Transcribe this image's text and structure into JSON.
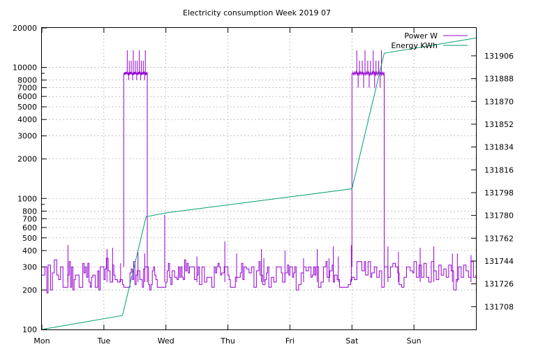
{
  "chart_data": {
    "type": "line",
    "title": "Electricity consumption Week 2019 07",
    "x_axis": {
      "categories": [
        "Mon",
        "Tue",
        "Wed",
        "Thu",
        "Fri",
        "Sat",
        "Sun"
      ],
      "unit": "days",
      "range": [
        0,
        7
      ]
    },
    "y_left": {
      "scale": "log",
      "range": [
        100,
        20000
      ],
      "ticks": [
        100,
        200,
        300,
        400,
        500,
        600,
        700,
        800,
        1000,
        2000,
        3000,
        4000,
        5000,
        6000,
        7000,
        8000,
        10000,
        20000
      ]
    },
    "y_right": {
      "scale": "linear",
      "range": [
        131690,
        131928
      ],
      "ticks": [
        131708,
        131726,
        131744,
        131762,
        131780,
        131798,
        131816,
        131834,
        131852,
        131870,
        131888,
        131906
      ]
    },
    "legend": {
      "placement": "top-right"
    },
    "grid": true,
    "series": [
      {
        "name": "Power W",
        "axis": "left",
        "color": "#9400d3",
        "step": true,
        "points": [
          [
            0.0,
            260
          ],
          [
            0.05,
            300
          ],
          [
            0.08,
            190
          ],
          [
            0.1,
            310
          ],
          [
            0.14,
            200
          ],
          [
            0.17,
            270
          ],
          [
            0.2,
            340
          ],
          [
            0.24,
            260
          ],
          [
            0.27,
            240
          ],
          [
            0.3,
            300
          ],
          [
            0.34,
            210
          ],
          [
            0.4,
            210
          ],
          [
            0.42,
            260
          ],
          [
            0.44,
            330
          ],
          [
            0.46,
            210
          ],
          [
            0.48,
            300
          ],
          [
            0.5,
            200
          ],
          [
            0.52,
            240
          ],
          [
            0.54,
            260
          ],
          [
            0.6,
            210
          ],
          [
            0.64,
            210
          ],
          [
            0.66,
            320
          ],
          [
            0.68,
            270
          ],
          [
            0.7,
            300
          ],
          [
            0.72,
            250
          ],
          [
            0.74,
            320
          ],
          [
            0.76,
            230
          ],
          [
            0.78,
            210
          ],
          [
            0.8,
            250
          ],
          [
            0.82,
            260
          ],
          [
            0.86,
            210
          ],
          [
            0.9,
            280
          ],
          [
            0.92,
            200
          ],
          [
            0.94,
            300
          ],
          [
            0.97,
            300
          ],
          [
            1.0,
            240
          ],
          [
            1.02,
            290
          ],
          [
            1.04,
            350
          ],
          [
            1.07,
            280
          ],
          [
            1.1,
            230
          ],
          [
            1.14,
            310
          ],
          [
            1.16,
            260
          ],
          [
            1.18,
            240
          ],
          [
            1.22,
            230
          ],
          [
            1.26,
            240
          ],
          [
            1.3,
            220
          ],
          [
            1.32,
            210
          ],
          [
            1.36,
            210
          ],
          [
            1.4,
            210
          ],
          [
            1.42,
            270
          ],
          [
            1.44,
            290
          ],
          [
            1.46,
            240
          ],
          [
            1.48,
            330
          ],
          [
            1.5,
            220
          ],
          [
            1.52,
            260
          ],
          [
            1.54,
            280
          ],
          [
            1.58,
            240
          ],
          [
            1.6,
            240
          ],
          [
            1.62,
            210
          ],
          [
            1.64,
            290
          ],
          [
            1.66,
            300
          ],
          [
            1.7,
            300
          ],
          [
            1.72,
            220
          ],
          [
            1.74,
            200
          ],
          [
            1.76,
            220
          ],
          [
            1.78,
            280
          ],
          [
            1.8,
            300
          ],
          [
            1.82,
            260
          ],
          [
            1.84,
            240
          ],
          [
            1.86,
            210
          ],
          [
            1.9,
            210
          ],
          [
            1.94,
            210
          ],
          [
            1.98,
            210
          ],
          [
            2.0,
            230
          ],
          [
            2.02,
            280
          ],
          [
            2.04,
            320
          ],
          [
            2.06,
            250
          ],
          [
            2.08,
            220
          ],
          [
            2.1,
            280
          ],
          [
            2.14,
            250
          ],
          [
            2.18,
            240
          ],
          [
            2.2,
            300
          ],
          [
            2.22,
            250
          ],
          [
            2.24,
            300
          ],
          [
            2.26,
            250
          ],
          [
            2.28,
            240
          ],
          [
            2.3,
            340
          ],
          [
            2.32,
            280
          ],
          [
            2.34,
            320
          ],
          [
            2.36,
            270
          ],
          [
            2.38,
            300
          ],
          [
            2.42,
            300
          ],
          [
            2.46,
            240
          ],
          [
            2.5,
            260
          ],
          [
            2.52,
            300
          ],
          [
            2.54,
            220
          ],
          [
            2.58,
            300
          ],
          [
            2.6,
            300
          ],
          [
            2.62,
            230
          ],
          [
            2.66,
            250
          ],
          [
            2.7,
            250
          ],
          [
            2.74,
            210
          ],
          [
            2.78,
            300
          ],
          [
            2.8,
            270
          ],
          [
            2.82,
            300
          ],
          [
            2.84,
            320
          ],
          [
            2.86,
            300
          ],
          [
            2.88,
            260
          ],
          [
            2.9,
            270
          ],
          [
            2.94,
            300
          ],
          [
            2.98,
            300
          ],
          [
            3.0,
            260
          ],
          [
            3.02,
            240
          ],
          [
            3.04,
            210
          ],
          [
            3.08,
            210
          ],
          [
            3.12,
            250
          ],
          [
            3.16,
            250
          ],
          [
            3.2,
            270
          ],
          [
            3.22,
            320
          ],
          [
            3.24,
            240
          ],
          [
            3.26,
            300
          ],
          [
            3.3,
            290
          ],
          [
            3.34,
            270
          ],
          [
            3.38,
            300
          ],
          [
            3.4,
            300
          ],
          [
            3.42,
            210
          ],
          [
            3.46,
            280
          ],
          [
            3.5,
            330
          ],
          [
            3.52,
            260
          ],
          [
            3.56,
            220
          ],
          [
            3.6,
            240
          ],
          [
            3.62,
            270
          ],
          [
            3.64,
            300
          ],
          [
            3.66,
            210
          ],
          [
            3.7,
            250
          ],
          [
            3.74,
            230
          ],
          [
            3.78,
            300
          ],
          [
            3.82,
            300
          ],
          [
            3.86,
            270
          ],
          [
            3.88,
            230
          ],
          [
            3.92,
            270
          ],
          [
            3.96,
            310
          ],
          [
            3.98,
            260
          ],
          [
            4.0,
            300
          ],
          [
            4.04,
            250
          ],
          [
            4.06,
            270
          ],
          [
            4.08,
            300
          ],
          [
            4.1,
            200
          ],
          [
            4.14,
            220
          ],
          [
            4.18,
            270
          ],
          [
            4.22,
            300
          ],
          [
            4.26,
            280
          ],
          [
            4.3,
            300
          ],
          [
            4.34,
            250
          ],
          [
            4.36,
            260
          ],
          [
            4.38,
            300
          ],
          [
            4.4,
            260
          ],
          [
            4.42,
            300
          ],
          [
            4.46,
            210
          ],
          [
            4.5,
            230
          ],
          [
            4.54,
            300
          ],
          [
            4.58,
            330
          ],
          [
            4.6,
            250
          ],
          [
            4.64,
            280
          ],
          [
            4.68,
            310
          ],
          [
            4.7,
            230
          ],
          [
            4.72,
            260
          ],
          [
            4.76,
            240
          ],
          [
            4.8,
            210
          ],
          [
            4.84,
            210
          ],
          [
            4.88,
            210
          ],
          [
            4.9,
            210
          ],
          [
            4.94,
            220
          ],
          [
            4.98,
            240
          ],
          [
            5.0,
            250
          ],
          [
            5.04,
            240
          ],
          [
            5.08,
            330
          ],
          [
            5.12,
            330
          ],
          [
            5.16,
            280
          ],
          [
            5.2,
            330
          ],
          [
            5.22,
            260
          ],
          [
            5.26,
            330
          ],
          [
            5.3,
            250
          ],
          [
            5.32,
            270
          ],
          [
            5.36,
            300
          ],
          [
            5.4,
            250
          ],
          [
            5.44,
            280
          ],
          [
            5.48,
            210
          ],
          [
            5.52,
            300
          ],
          [
            5.56,
            300
          ],
          [
            5.58,
            250
          ],
          [
            5.62,
            300
          ],
          [
            5.66,
            320
          ],
          [
            5.7,
            300
          ],
          [
            5.74,
            270
          ],
          [
            5.76,
            220
          ],
          [
            5.8,
            210
          ],
          [
            5.84,
            250
          ],
          [
            5.88,
            300
          ],
          [
            5.9,
            300
          ],
          [
            5.94,
            280
          ],
          [
            5.98,
            270
          ],
          [
            6.0,
            330
          ],
          [
            6.04,
            250
          ],
          [
            6.08,
            310
          ],
          [
            6.12,
            250
          ],
          [
            6.16,
            320
          ],
          [
            6.2,
            250
          ],
          [
            6.24,
            230
          ],
          [
            6.28,
            330
          ],
          [
            6.32,
            280
          ],
          [
            6.36,
            240
          ],
          [
            6.4,
            310
          ],
          [
            6.44,
            260
          ],
          [
            6.48,
            290
          ],
          [
            6.52,
            250
          ],
          [
            6.56,
            310
          ],
          [
            6.6,
            280
          ],
          [
            6.64,
            200
          ],
          [
            6.68,
            240
          ],
          [
            6.72,
            300
          ],
          [
            6.76,
            250
          ],
          [
            6.8,
            310
          ],
          [
            6.84,
            280
          ],
          [
            6.88,
            250
          ],
          [
            6.92,
            330
          ],
          [
            6.96,
            250
          ],
          [
            7.0,
            260
          ]
        ],
        "spikes": [
          [
            0.42,
            440
          ],
          [
            1.05,
            410
          ],
          [
            1.14,
            420
          ],
          [
            1.27,
            320
          ],
          [
            1.55,
            390
          ],
          [
            1.66,
            380
          ],
          [
            1.98,
            750
          ],
          [
            2.5,
            360
          ],
          [
            2.95,
            470
          ],
          [
            3.14,
            380
          ],
          [
            3.54,
            410
          ],
          [
            3.58,
            350
          ],
          [
            3.92,
            400
          ],
          [
            4.22,
            350
          ],
          [
            4.44,
            410
          ],
          [
            4.63,
            350
          ],
          [
            4.7,
            430
          ],
          [
            4.78,
            360
          ],
          [
            4.99,
            440
          ],
          [
            5.58,
            430
          ],
          [
            5.75,
            390
          ],
          [
            6.1,
            420
          ],
          [
            6.32,
            430
          ],
          [
            6.62,
            380
          ],
          [
            6.7,
            380
          ],
          [
            6.92,
            370
          ]
        ],
        "bursts": [
          {
            "start": 1.32,
            "end": 1.7,
            "base": 9000,
            "lowest": 8000,
            "peak": 13500
          },
          {
            "start": 5.0,
            "end": 5.52,
            "base": 9000,
            "lowest": 7000,
            "peak": 13500
          }
        ]
      },
      {
        "name": "Energy KWh",
        "axis": "right",
        "color": "#009e73",
        "points": [
          [
            0.0,
            131690
          ],
          [
            1.3,
            131701
          ],
          [
            1.68,
            131779
          ],
          [
            2.0,
            131782
          ],
          [
            5.0,
            131801
          ],
          [
            5.52,
            131908
          ],
          [
            7.0,
            131920
          ]
        ]
      }
    ]
  }
}
